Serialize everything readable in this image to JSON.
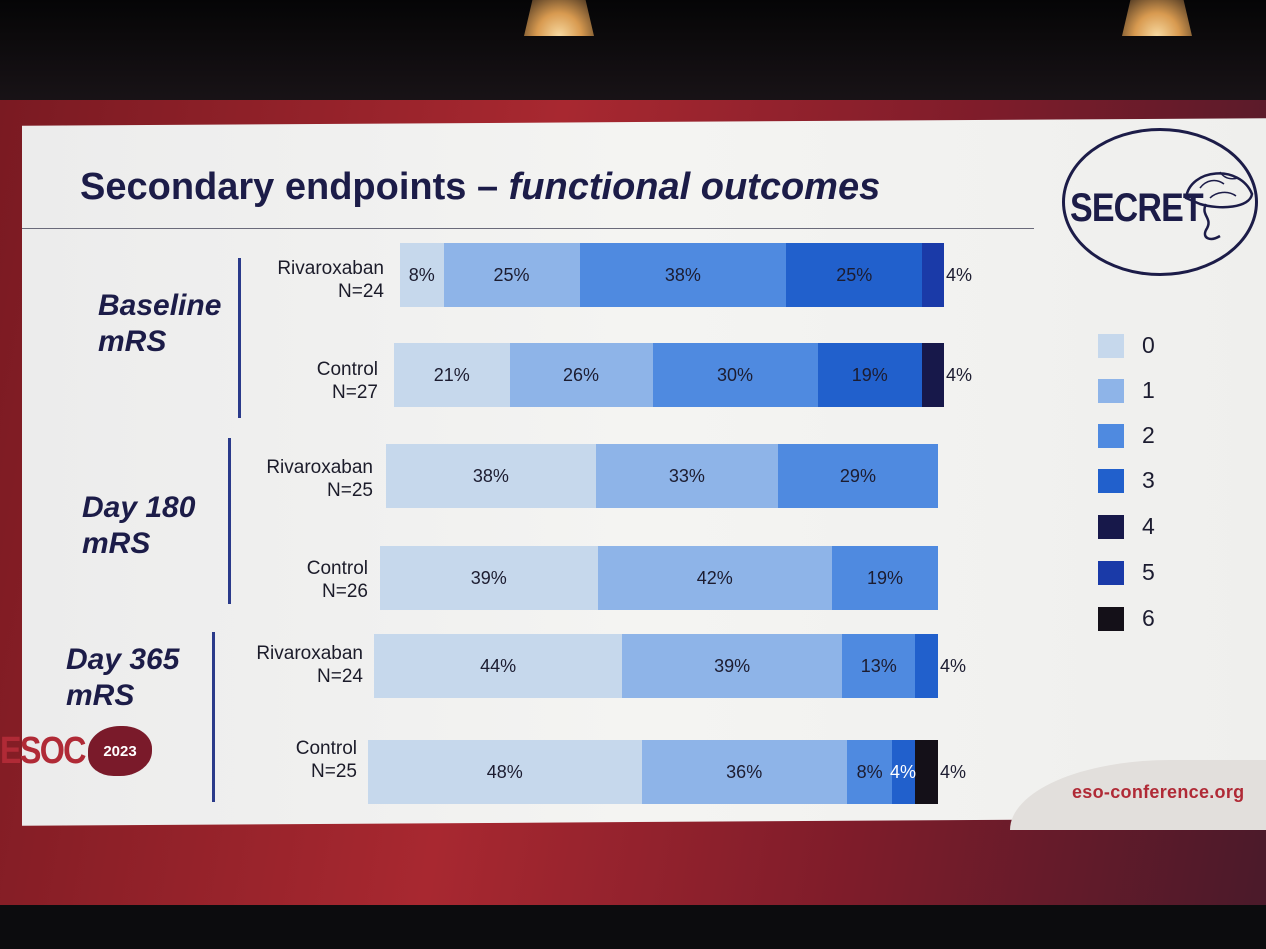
{
  "slide": {
    "title_main": "Secondary endpoints – ",
    "title_italic": "functional outcomes",
    "logo_text": "SECRET",
    "esoc_text": "ESOC",
    "esoc_year": "2023",
    "url": "eso-conference.org"
  },
  "groups": [
    {
      "label": "Baseline\nmRS"
    },
    {
      "label": "Day 180\nmRS"
    },
    {
      "label": "Day 365\nmRS"
    }
  ],
  "rows": [
    {
      "label": "Rivaroxaban\nN=24"
    },
    {
      "label": "Control\nN=27"
    },
    {
      "label": "Rivaroxaban\nN=25"
    },
    {
      "label": "Control\nN=26"
    },
    {
      "label": "Rivaroxaban\nN=24"
    },
    {
      "label": "Control\nN=25"
    }
  ],
  "legend": [
    {
      "label": "0",
      "color": "#c6d8ec"
    },
    {
      "label": "1",
      "color": "#8eb4e8"
    },
    {
      "label": "2",
      "color": "#4f8ae0"
    },
    {
      "label": "3",
      "color": "#2160cc"
    },
    {
      "label": "4",
      "color": "#17184a"
    },
    {
      "label": "5",
      "color": "#1a3aa8"
    },
    {
      "label": "6",
      "color": "#141018"
    }
  ],
  "chart_data": {
    "type": "bar",
    "orientation": "horizontal",
    "stacked": "100%",
    "categories": [
      "Baseline mRS – Rivaroxaban N=24",
      "Baseline mRS – Control N=27",
      "Day 180 mRS – Rivaroxaban N=25",
      "Day 180 mRS – Control N=26",
      "Day 365 mRS – Rivaroxaban N=24",
      "Day 365 mRS – Control N=25"
    ],
    "series": [
      {
        "name": "0",
        "color": "#c6d8ec",
        "values": [
          8,
          21,
          38,
          39,
          44,
          48
        ],
        "labels": [
          "8%",
          "21%",
          "38%",
          "39%",
          "44%",
          "48%"
        ]
      },
      {
        "name": "1",
        "color": "#8eb4e8",
        "values": [
          25,
          26,
          33,
          42,
          39,
          36
        ],
        "labels": [
          "25%",
          "26%",
          "33%",
          "42%",
          "39%",
          "36%"
        ]
      },
      {
        "name": "2",
        "color": "#4f8ae0",
        "values": [
          38,
          30,
          29,
          19,
          13,
          8
        ],
        "labels": [
          "38%",
          "30%",
          "29%",
          "19%",
          "13%",
          "8%"
        ]
      },
      {
        "name": "3",
        "color": "#2160cc",
        "values": [
          25,
          19,
          0,
          0,
          4,
          4
        ],
        "labels": [
          "25%",
          "19%",
          "",
          "",
          "4%",
          "4%"
        ]
      },
      {
        "name": "4",
        "color": "#17184a",
        "values": [
          0,
          4,
          0,
          0,
          0,
          0
        ],
        "labels": [
          "",
          "4%",
          "",
          "",
          "",
          ""
        ]
      },
      {
        "name": "5",
        "color": "#1a3aa8",
        "values": [
          4,
          0,
          0,
          0,
          0,
          0
        ],
        "labels": [
          "4%",
          "",
          "",
          "",
          "",
          ""
        ]
      },
      {
        "name": "6",
        "color": "#141018",
        "values": [
          0,
          0,
          0,
          0,
          0,
          4
        ],
        "labels": [
          "",
          "",
          "",
          "",
          "",
          "4%"
        ]
      }
    ],
    "title": "Secondary endpoints – functional outcomes",
    "legend_position": "right"
  }
}
